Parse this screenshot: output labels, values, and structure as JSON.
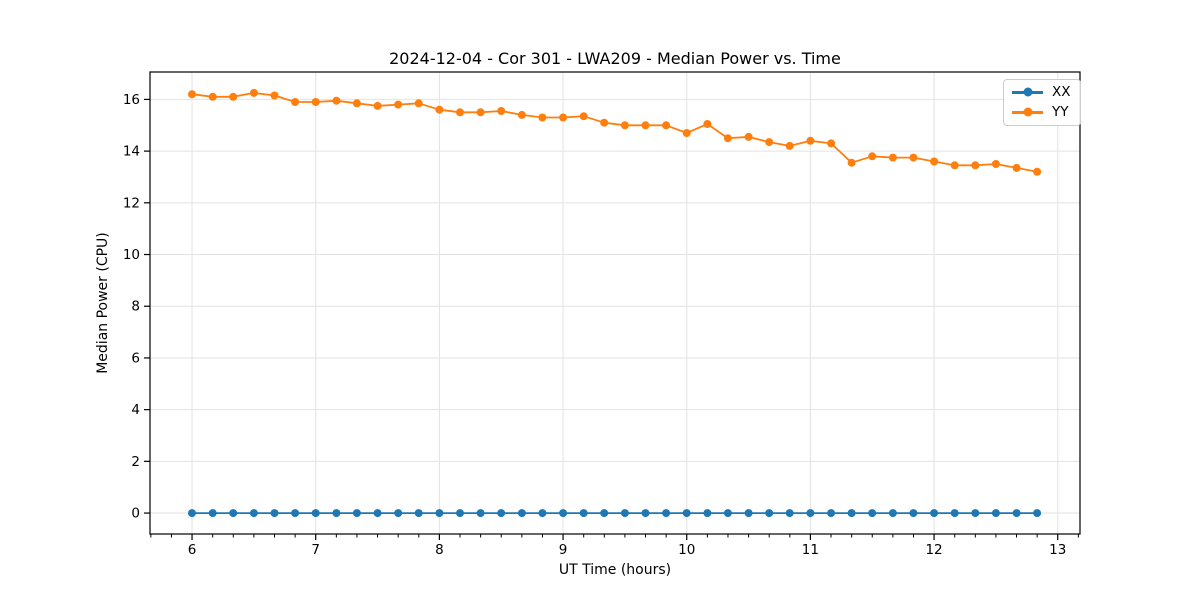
{
  "chart_data": {
    "type": "line",
    "title": "2024-12-04 - Cor 301 - LWA209 - Median Power vs. Time",
    "xlabel": "UT Time (hours)",
    "ylabel": "Median Power (CPU)",
    "xlim": [
      5.66,
      13.18
    ],
    "ylim": [
      -0.81,
      17.06
    ],
    "x_ticks": [
      6,
      7,
      8,
      9,
      10,
      11,
      12,
      13
    ],
    "y_ticks": [
      0,
      2,
      4,
      6,
      8,
      10,
      12,
      14,
      16
    ],
    "x_minor_interval": 0.16667,
    "grid": true,
    "legend_position": "upper right",
    "x": [
      6.0,
      6.167,
      6.333,
      6.5,
      6.667,
      6.833,
      7.0,
      7.167,
      7.333,
      7.5,
      7.667,
      7.833,
      8.0,
      8.167,
      8.333,
      8.5,
      8.667,
      8.833,
      9.0,
      9.167,
      9.333,
      9.5,
      9.667,
      9.833,
      10.0,
      10.167,
      10.333,
      10.5,
      10.667,
      10.833,
      11.0,
      11.167,
      11.333,
      11.5,
      11.667,
      11.833,
      12.0,
      12.167,
      12.333,
      12.5,
      12.667,
      12.833
    ],
    "series": [
      {
        "name": "XX",
        "color": "#1f77b4",
        "values": [
          0,
          0,
          0,
          0,
          0,
          0,
          0,
          0,
          0,
          0,
          0,
          0,
          0,
          0,
          0,
          0,
          0,
          0,
          0,
          0,
          0,
          0,
          0,
          0,
          0,
          0,
          0,
          0,
          0,
          0,
          0,
          0,
          0,
          0,
          0,
          0,
          0,
          0,
          0,
          0,
          0,
          0
        ]
      },
      {
        "name": "YY",
        "color": "#ff7f0e",
        "values": [
          16.2,
          16.1,
          16.1,
          16.25,
          16.15,
          15.9,
          15.9,
          15.95,
          15.85,
          15.75,
          15.8,
          15.85,
          15.6,
          15.5,
          15.5,
          15.55,
          15.4,
          15.3,
          15.3,
          15.35,
          15.1,
          15.0,
          15.0,
          15.0,
          14.7,
          15.05,
          14.5,
          14.55,
          14.35,
          14.2,
          14.4,
          14.3,
          13.55,
          13.8,
          13.75,
          13.75,
          13.6,
          13.45,
          13.45,
          13.5,
          13.35,
          13.2
        ]
      }
    ]
  },
  "legend": {
    "items": [
      {
        "label": "XX",
        "color": "#1f77b4"
      },
      {
        "label": "YY",
        "color": "#ff7f0e"
      }
    ]
  },
  "style": {
    "grid_color": "#e2e2e2",
    "spine_color": "#000000",
    "tick_color": "#000000",
    "tick_label_size": "13.5",
    "marker_radius": "4",
    "line_width": "1.8"
  }
}
